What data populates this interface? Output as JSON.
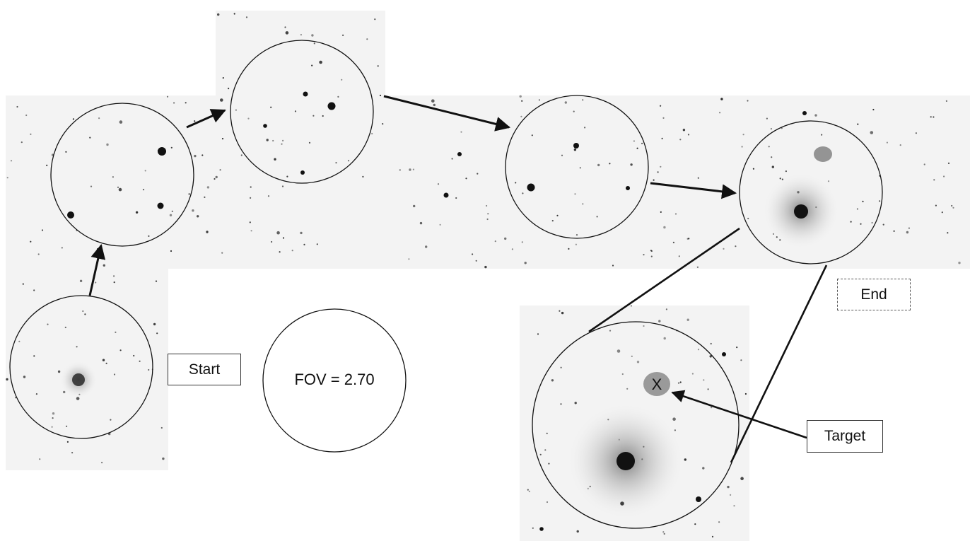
{
  "labels": {
    "start": "Start",
    "end": "End",
    "target": "Target",
    "fov": "FOV = 2.70",
    "target_marker": "X"
  },
  "legend": {
    "start_box": "Start",
    "end_box": "End",
    "target_box": "Target"
  },
  "colors": {
    "sky_background": "#f5f5f5",
    "star": "#111111",
    "circle_stroke": "#111111",
    "arrow": "#111111",
    "galaxy_halo": "#bdbdbd",
    "galaxy_target": "#8a8a8a"
  },
  "icons": {
    "arrow": "arrow-icon",
    "star": "star-icon",
    "galaxy": "galaxy-icon"
  }
}
